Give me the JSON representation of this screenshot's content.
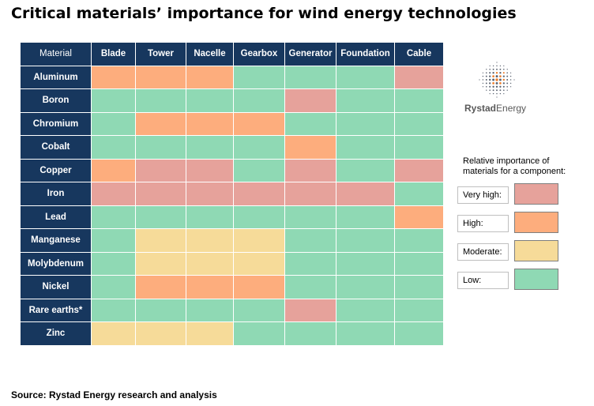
{
  "title": "Critical materials’ importance for wind energy technologies",
  "source": "Source: Rystad Energy research and analysis",
  "brand": {
    "bold": "Rystad",
    "regular": "Energy"
  },
  "legend": {
    "title": "Relative importance of materials for a component:",
    "items": [
      {
        "label": "Very high:",
        "level": 3,
        "color": "#e6a29b"
      },
      {
        "label": "High:",
        "level": 2,
        "color": "#fdad7d"
      },
      {
        "label": "Moderate:",
        "level": 1,
        "color": "#f6db99"
      },
      {
        "label": "Low:",
        "level": 0,
        "color": "#8fd9b4"
      }
    ]
  },
  "chart_data": {
    "type": "heatmap",
    "corner_label": "Material",
    "columns": [
      "Blade",
      "Tower",
      "Nacelle",
      "Gearbox",
      "Generator",
      "Foundation",
      "Cable"
    ],
    "rows": [
      "Aluminum",
      "Boron",
      "Chromium",
      "Cobalt",
      "Copper",
      "Iron",
      "Lead",
      "Manganese",
      "Molybdenum",
      "Nickel",
      "Rare earths*",
      "Zinc"
    ],
    "scale": {
      "0": "Low",
      "1": "Moderate",
      "2": "High",
      "3": "Very high"
    },
    "values": [
      [
        2,
        2,
        2,
        0,
        0,
        0,
        3
      ],
      [
        0,
        0,
        0,
        0,
        3,
        0,
        0
      ],
      [
        0,
        2,
        2,
        2,
        0,
        0,
        0
      ],
      [
        0,
        0,
        0,
        0,
        2,
        0,
        0
      ],
      [
        2,
        3,
        3,
        0,
        3,
        0,
        3
      ],
      [
        3,
        3,
        3,
        3,
        3,
        3,
        0
      ],
      [
        0,
        0,
        0,
        0,
        0,
        0,
        2
      ],
      [
        0,
        1,
        1,
        1,
        0,
        0,
        0
      ],
      [
        0,
        1,
        1,
        1,
        0,
        0,
        0
      ],
      [
        0,
        2,
        2,
        2,
        0,
        0,
        0
      ],
      [
        0,
        0,
        0,
        0,
        3,
        0,
        0
      ],
      [
        1,
        1,
        1,
        0,
        0,
        0,
        0
      ]
    ]
  }
}
